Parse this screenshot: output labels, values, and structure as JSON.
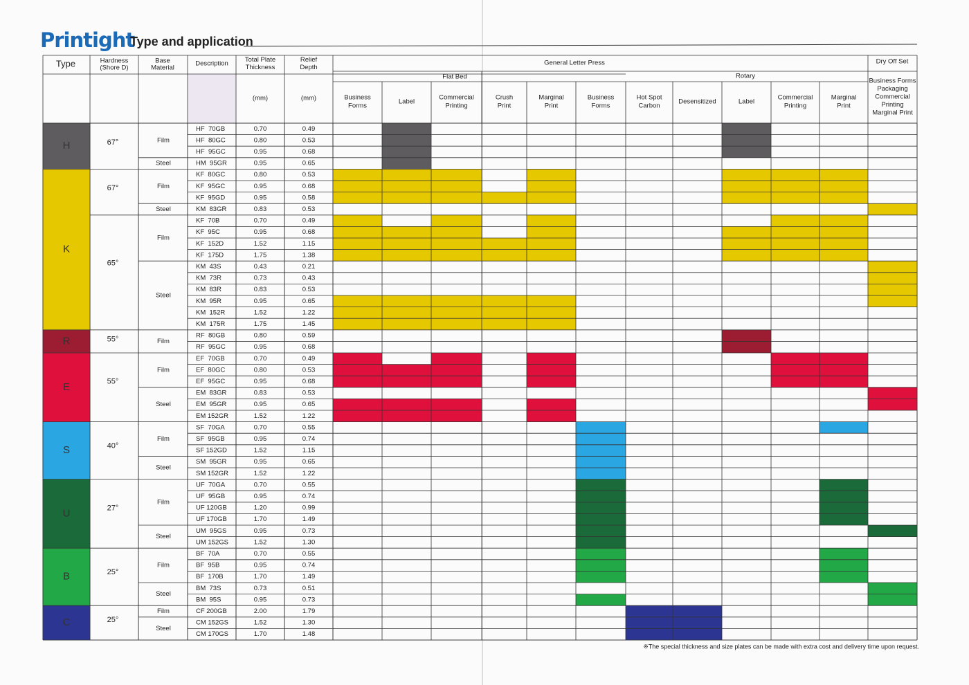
{
  "header": {
    "brand": "Printight",
    "title": "Type and application"
  },
  "table": {
    "columns": {
      "type": "Type",
      "hardness": [
        "Hardness",
        "(Shore D)"
      ],
      "material": [
        "Base",
        "Material"
      ],
      "description": "Description",
      "thickness": [
        "Total Plate",
        "Thickness"
      ],
      "relief": [
        "Relief",
        "Depth"
      ]
    },
    "units": {
      "thickness": "(mm)",
      "relief": "(mm)"
    },
    "groups": {
      "general": "General Letter Press",
      "flat_bed": "Flat Bed",
      "rotary": "Rotary",
      "dry": "Dry Off Set"
    },
    "applications": [
      [
        "Business",
        "Forms"
      ],
      [
        "Label"
      ],
      [
        "Commercial",
        "Printing"
      ],
      [
        "Crush",
        "Print"
      ],
      [
        "Marginal",
        "Print"
      ],
      [
        "Business",
        "Forms"
      ],
      [
        "Hot Spot",
        "Carbon"
      ],
      [
        "Desensitized"
      ],
      [
        "Label"
      ],
      [
        "Commercial",
        "Printing"
      ],
      [
        "Marginal",
        "Print"
      ],
      [
        "Business Forms",
        "Packaging",
        "Commercial",
        "Printing",
        "Marginal Print"
      ]
    ],
    "types": [
      {
        "label": "H",
        "color": "#5e5c5f",
        "hardness": [
          {
            "label": "67°",
            "materials": [
              {
                "label": "Film",
                "rows": [
                  {
                    "description": "HF  70GB",
                    "thickness": "0.70",
                    "relief": "0.49",
                    "uses": [
                      1,
                      8
                    ]
                  },
                  {
                    "description": "HF  80GC",
                    "thickness": "0.80",
                    "relief": "0.53",
                    "uses": [
                      1,
                      8
                    ]
                  },
                  {
                    "description": "HF  95GC",
                    "thickness": "0.95",
                    "relief": "0.68",
                    "uses": [
                      1,
                      8
                    ]
                  }
                ]
              },
              {
                "label": "Steel",
                "rows": [
                  {
                    "description": "HM  95GR",
                    "thickness": "0.95",
                    "relief": "0.65",
                    "uses": [
                      1
                    ]
                  }
                ]
              }
            ]
          }
        ]
      },
      {
        "label": "K",
        "color": "#e5c800",
        "hardness": [
          {
            "label": "67°",
            "materials": [
              {
                "label": "Film",
                "rows": [
                  {
                    "description": "KF  80GC",
                    "thickness": "0.80",
                    "relief": "0.53",
                    "uses": [
                      0,
                      1,
                      2,
                      4,
                      8,
                      9,
                      10
                    ]
                  },
                  {
                    "description": "KF  95GC",
                    "thickness": "0.95",
                    "relief": "0.68",
                    "uses": [
                      0,
                      1,
                      2,
                      4,
                      8,
                      9,
                      10
                    ]
                  },
                  {
                    "description": "KF  95GD",
                    "thickness": "0.95",
                    "relief": "0.58",
                    "uses": [
                      0,
                      1,
                      2,
                      3,
                      4,
                      8,
                      9,
                      10
                    ]
                  }
                ]
              },
              {
                "label": "Steel",
                "rows": [
                  {
                    "description": "KM  83GR",
                    "thickness": "0.83",
                    "relief": "0.53",
                    "uses": [
                      11
                    ]
                  }
                ]
              }
            ]
          },
          {
            "label": "65°",
            "materials": [
              {
                "label": "Film",
                "rows": [
                  {
                    "description": "KF  70B",
                    "thickness": "0.70",
                    "relief": "0.49",
                    "uses": [
                      0,
                      2,
                      4,
                      9,
                      10
                    ]
                  },
                  {
                    "description": "KF  95C",
                    "thickness": "0.95",
                    "relief": "0.68",
                    "uses": [
                      0,
                      1,
                      2,
                      4,
                      8,
                      9,
                      10
                    ]
                  },
                  {
                    "description": "KF  152D",
                    "thickness": "1.52",
                    "relief": "1.15",
                    "uses": [
                      0,
                      1,
                      2,
                      3,
                      4,
                      8,
                      9,
                      10
                    ]
                  },
                  {
                    "description": "KF  175D",
                    "thickness": "1.75",
                    "relief": "1.38",
                    "uses": [
                      0,
                      1,
                      2,
                      3,
                      4,
                      8,
                      9,
                      10
                    ]
                  }
                ]
              },
              {
                "label": "Steel",
                "rows": [
                  {
                    "description": "KM  43S",
                    "thickness": "0.43",
                    "relief": "0.21",
                    "uses": [
                      11
                    ]
                  },
                  {
                    "description": "KM  73R",
                    "thickness": "0.73",
                    "relief": "0.43",
                    "uses": [
                      11
                    ]
                  },
                  {
                    "description": "KM  83R",
                    "thickness": "0.83",
                    "relief": "0.53",
                    "uses": [
                      11
                    ]
                  },
                  {
                    "description": "KM  95R",
                    "thickness": "0.95",
                    "relief": "0.65",
                    "uses": [
                      0,
                      1,
                      2,
                      3,
                      4,
                      11
                    ]
                  },
                  {
                    "description": "KM  152R",
                    "thickness": "1.52",
                    "relief": "1.22",
                    "uses": [
                      0,
                      1,
                      2,
                      3,
                      4
                    ]
                  },
                  {
                    "description": "KM  175R",
                    "thickness": "1.75",
                    "relief": "1.45",
                    "uses": [
                      0,
                      1,
                      2,
                      3,
                      4
                    ]
                  }
                ]
              }
            ]
          }
        ]
      },
      {
        "label": "R",
        "color": "#9c1c32",
        "hardness": [
          {
            "label": "55°",
            "materials": [
              {
                "label": "Film",
                "rows": [
                  {
                    "description": "RF  80GB",
                    "thickness": "0.80",
                    "relief": "0.59",
                    "uses": [
                      8
                    ]
                  },
                  {
                    "description": "RF  95GC",
                    "thickness": "0.95",
                    "relief": "0.68",
                    "uses": [
                      8
                    ]
                  }
                ]
              }
            ]
          }
        ]
      },
      {
        "label": "E",
        "color": "#e0103c",
        "hardness": [
          {
            "label": "55°",
            "materials": [
              {
                "label": "Film",
                "rows": [
                  {
                    "description": "EF  70GB",
                    "thickness": "0.70",
                    "relief": "0.49",
                    "uses": [
                      0,
                      2,
                      4,
                      9,
                      10
                    ]
                  },
                  {
                    "description": "EF  80GC",
                    "thickness": "0.80",
                    "relief": "0.53",
                    "uses": [
                      0,
                      1,
                      2,
                      4,
                      9,
                      10
                    ]
                  },
                  {
                    "description": "EF  95GC",
                    "thickness": "0.95",
                    "relief": "0.68",
                    "uses": [
                      0,
                      1,
                      2,
                      4,
                      9,
                      10
                    ]
                  }
                ]
              },
              {
                "label": "Steel",
                "rows": [
                  {
                    "description": "EM  83GR",
                    "thickness": "0.83",
                    "relief": "0.53",
                    "uses": [
                      11
                    ]
                  },
                  {
                    "description": "EM  95GR",
                    "thickness": "0.95",
                    "relief": "0.65",
                    "uses": [
                      0,
                      1,
                      2,
                      4,
                      11
                    ]
                  },
                  {
                    "description": "EM 152GR",
                    "thickness": "1.52",
                    "relief": "1.22",
                    "uses": [
                      0,
                      1,
                      2,
                      4
                    ]
                  }
                ]
              }
            ]
          }
        ]
      },
      {
        "label": "S",
        "color": "#2aa6e2",
        "hardness": [
          {
            "label": "40°",
            "materials": [
              {
                "label": "Film",
                "rows": [
                  {
                    "description": "SF  70GA",
                    "thickness": "0.70",
                    "relief": "0.55",
                    "uses": [
                      5,
                      10
                    ]
                  },
                  {
                    "description": "SF  95GB",
                    "thickness": "0.95",
                    "relief": "0.74",
                    "uses": [
                      5
                    ]
                  },
                  {
                    "description": "SF 152GD",
                    "thickness": "1.52",
                    "relief": "1.15",
                    "uses": [
                      5
                    ]
                  }
                ]
              },
              {
                "label": "Steel",
                "rows": [
                  {
                    "description": "SM  95GR",
                    "thickness": "0.95",
                    "relief": "0.65",
                    "uses": [
                      5
                    ]
                  },
                  {
                    "description": "SM 152GR",
                    "thickness": "1.52",
                    "relief": "1.22",
                    "uses": [
                      5
                    ]
                  }
                ]
              }
            ]
          }
        ]
      },
      {
        "label": "U",
        "color": "#1b6a3a",
        "hardness": [
          {
            "label": "27°",
            "materials": [
              {
                "label": "Film",
                "rows": [
                  {
                    "description": "UF  70GA",
                    "thickness": "0.70",
                    "relief": "0.55",
                    "uses": [
                      5,
                      10
                    ]
                  },
                  {
                    "description": "UF  95GB",
                    "thickness": "0.95",
                    "relief": "0.74",
                    "uses": [
                      5,
                      10
                    ]
                  },
                  {
                    "description": "UF 120GB",
                    "thickness": "1.20",
                    "relief": "0.99",
                    "uses": [
                      5,
                      10
                    ]
                  },
                  {
                    "description": "UF 170GB",
                    "thickness": "1.70",
                    "relief": "1.49",
                    "uses": [
                      5,
                      10
                    ]
                  }
                ]
              },
              {
                "label": "Steel",
                "rows": [
                  {
                    "description": "UM  95GS",
                    "thickness": "0.95",
                    "relief": "0.73",
                    "uses": [
                      5,
                      11
                    ]
                  },
                  {
                    "description": "UM 152GS",
                    "thickness": "1.52",
                    "relief": "1.30",
                    "uses": [
                      5
                    ]
                  }
                ]
              }
            ]
          }
        ]
      },
      {
        "label": "B",
        "color": "#22a846",
        "hardness": [
          {
            "label": "25°",
            "materials": [
              {
                "label": "Film",
                "rows": [
                  {
                    "description": "BF  70A",
                    "thickness": "0.70",
                    "relief": "0.55",
                    "uses": [
                      5,
                      10
                    ]
                  },
                  {
                    "description": "BF  95B",
                    "thickness": "0.95",
                    "relief": "0.74",
                    "uses": [
                      5,
                      10
                    ]
                  },
                  {
                    "description": "BF  170B",
                    "thickness": "1.70",
                    "relief": "1.49",
                    "uses": [
                      5,
                      10
                    ]
                  }
                ]
              },
              {
                "label": "Steel",
                "rows": [
                  {
                    "description": "BM  73S",
                    "thickness": "0.73",
                    "relief": "0.51",
                    "uses": [
                      11
                    ]
                  },
                  {
                    "description": "BM  95S",
                    "thickness": "0.95",
                    "relief": "0.73",
                    "uses": [
                      5,
                      11
                    ]
                  }
                ]
              }
            ]
          }
        ]
      },
      {
        "label": "C",
        "color": "#2c3592",
        "hardness": [
          {
            "label": "25°",
            "materials": [
              {
                "label": "Film",
                "rows": [
                  {
                    "description": "CF 200GB",
                    "thickness": "2.00",
                    "relief": "1.79",
                    "uses": [
                      6,
                      7
                    ]
                  }
                ]
              },
              {
                "label": "Steel",
                "rows": [
                  {
                    "description": "CM 152GS",
                    "thickness": "1.52",
                    "relief": "1.30",
                    "uses": [
                      6,
                      7
                    ]
                  },
                  {
                    "description": "CM 170GS",
                    "thickness": "1.70",
                    "relief": "1.48",
                    "uses": [
                      6,
                      7
                    ]
                  }
                ]
              }
            ]
          }
        ]
      }
    ]
  },
  "footnote": "※The special thickness and size plates can be made with extra cost and delivery time upon request."
}
